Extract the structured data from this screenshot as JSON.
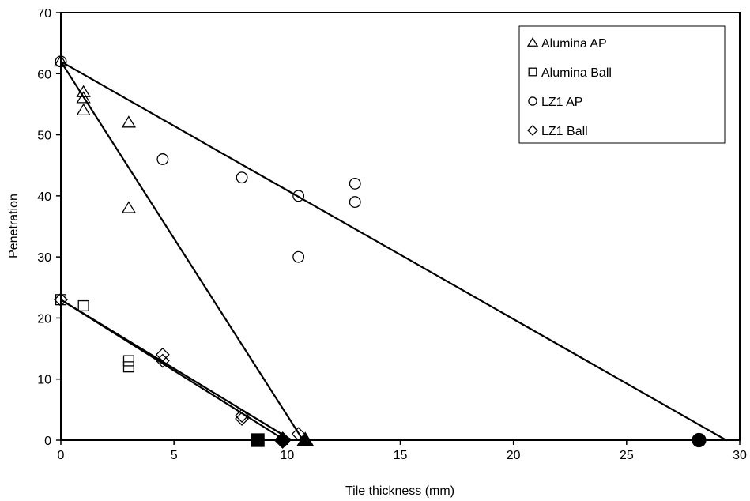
{
  "chart_data": {
    "type": "scatter",
    "xlabel": "Tile thickness (mm)",
    "ylabel": "Penetration",
    "xlim": [
      0,
      30
    ],
    "ylim": [
      0,
      70
    ],
    "xticks": [
      0,
      5,
      10,
      15,
      20,
      25,
      30
    ],
    "yticks": [
      0,
      10,
      20,
      30,
      40,
      50,
      60,
      70
    ],
    "grid": false,
    "legend_position": "top-right",
    "series": [
      {
        "name": "Alumina AP",
        "marker": "triangle",
        "points": [
          [
            0,
            62
          ],
          [
            1,
            57
          ],
          [
            1,
            56
          ],
          [
            1,
            54
          ],
          [
            3,
            52
          ],
          [
            3,
            38
          ]
        ],
        "fit_line": [
          [
            0,
            62
          ],
          [
            10.7,
            0
          ]
        ],
        "intercept_marker": [
          10.8,
          0
        ]
      },
      {
        "name": "Alumina Ball",
        "marker": "square",
        "points": [
          [
            0,
            23
          ],
          [
            1,
            22
          ],
          [
            3,
            13
          ],
          [
            3,
            12
          ]
        ],
        "fit_line": [
          [
            0,
            23
          ],
          [
            9.9,
            0
          ]
        ],
        "intercept_marker": [
          8.7,
          0
        ]
      },
      {
        "name": "LZ1 AP",
        "marker": "circle",
        "points": [
          [
            0,
            62
          ],
          [
            4.5,
            46
          ],
          [
            8,
            43
          ],
          [
            10.5,
            40
          ],
          [
            10.5,
            30
          ],
          [
            13,
            42
          ],
          [
            13,
            39
          ]
        ],
        "fit_line": [
          [
            0,
            62
          ],
          [
            29.4,
            0
          ]
        ],
        "intercept_marker": [
          28.2,
          0
        ]
      },
      {
        "name": "LZ1 Ball",
        "marker": "diamond",
        "points": [
          [
            0,
            23
          ],
          [
            4.5,
            14
          ],
          [
            4.5,
            13
          ],
          [
            8,
            4
          ],
          [
            8,
            3.5
          ],
          [
            10.5,
            1
          ]
        ],
        "fit_line": [
          [
            0,
            23
          ],
          [
            10.2,
            0
          ]
        ],
        "intercept_marker": [
          9.8,
          0
        ]
      }
    ]
  }
}
